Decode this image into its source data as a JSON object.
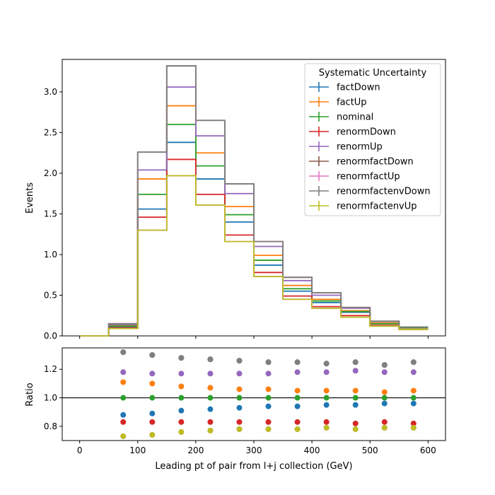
{
  "chart_data": {
    "type": "line",
    "main": {
      "xlabel": "",
      "ylabel": "Events",
      "xlim": [
        -30,
        630
      ],
      "ylim": [
        0,
        3.4
      ],
      "yticks": [
        0.0,
        0.5,
        1.0,
        1.5,
        2.0,
        2.5,
        3.0
      ],
      "ytick_labels": [
        "0.0",
        "0.5",
        "1.0",
        "1.5",
        "2.0",
        "2.5",
        "3.0"
      ],
      "bin_edges": [
        0,
        50,
        100,
        150,
        200,
        250,
        300,
        350,
        400,
        450,
        500,
        550,
        600
      ],
      "legend": {
        "title": "Systematic Uncertainty",
        "placement": "upper right"
      },
      "series": [
        {
          "name": "factDown",
          "color": "#1f77b4",
          "values": [
            0.0,
            0.11,
            1.56,
            2.38,
            1.93,
            1.4,
            0.87,
            0.55,
            0.41,
            0.29,
            0.15,
            0.1
          ]
        },
        {
          "name": "factUp",
          "color": "#ff7f0e",
          "values": [
            0.0,
            0.13,
            1.93,
            2.83,
            2.25,
            1.59,
            0.99,
            0.62,
            0.45,
            0.31,
            0.16,
            0.1
          ]
        },
        {
          "name": "nominal",
          "color": "#2ca02c",
          "values": [
            0.0,
            0.12,
            1.74,
            2.6,
            2.09,
            1.49,
            0.93,
            0.58,
            0.43,
            0.3,
            0.15,
            0.1
          ]
        },
        {
          "name": "renormDown",
          "color": "#d62728",
          "values": [
            0.0,
            0.1,
            1.46,
            2.17,
            1.74,
            1.24,
            0.78,
            0.49,
            0.36,
            0.25,
            0.13,
            0.08
          ]
        },
        {
          "name": "renormUp",
          "color": "#9467bd",
          "values": [
            0.0,
            0.14,
            2.04,
            3.06,
            2.46,
            1.75,
            1.1,
            0.68,
            0.5,
            0.34,
            0.18,
            0.11
          ]
        },
        {
          "name": "renormfactDown",
          "color": "#8c564b",
          "values": [
            0.0,
            0.15,
            2.26,
            3.32,
            2.65,
            1.87,
            1.16,
            0.72,
            0.53,
            0.35,
            0.18,
            0.11
          ]
        },
        {
          "name": "renormfactUp",
          "color": "#e377c2",
          "values": [
            0.0,
            0.09,
            1.3,
            1.97,
            1.61,
            1.16,
            0.73,
            0.45,
            0.34,
            0.23,
            0.12,
            0.08
          ]
        },
        {
          "name": "renormfactenvDown",
          "color": "#7f7f7f",
          "values": [
            0.0,
            0.15,
            2.26,
            3.32,
            2.65,
            1.87,
            1.16,
            0.72,
            0.53,
            0.35,
            0.18,
            0.11
          ]
        },
        {
          "name": "renormfactenvUp",
          "color": "#bcbd22",
          "values": [
            0.0,
            0.09,
            1.3,
            1.97,
            1.61,
            1.16,
            0.73,
            0.45,
            0.34,
            0.23,
            0.12,
            0.08
          ]
        }
      ]
    },
    "ratio": {
      "type": "scatter",
      "xlabel": "Leading pt of pair from l+j collection (GeV)",
      "ylabel": "Ratio",
      "xlim": [
        -30,
        630
      ],
      "ylim": [
        0.7,
        1.35
      ],
      "xticks": [
        0,
        100,
        200,
        300,
        400,
        500,
        600
      ],
      "xtick_labels": [
        "0",
        "100",
        "200",
        "300",
        "400",
        "500",
        "600"
      ],
      "yticks": [
        0.8,
        1.0,
        1.2
      ],
      "ytick_labels": [
        "0.8",
        "1.0",
        "1.2"
      ],
      "reference_line": 1.0,
      "x": [
        75,
        125,
        175,
        225,
        275,
        325,
        375,
        425,
        475,
        525,
        575
      ],
      "series": [
        {
          "name": "factDown",
          "color": "#1f77b4",
          "values": [
            0.88,
            0.89,
            0.91,
            0.92,
            0.93,
            0.94,
            0.94,
            0.95,
            0.95,
            0.96,
            0.96
          ]
        },
        {
          "name": "factUp",
          "color": "#ff7f0e",
          "values": [
            1.11,
            1.1,
            1.08,
            1.07,
            1.06,
            1.06,
            1.05,
            1.05,
            1.05,
            1.04,
            1.05
          ]
        },
        {
          "name": "nominal",
          "color": "#2ca02c",
          "values": [
            1.0,
            1.0,
            1.0,
            1.0,
            1.0,
            1.0,
            1.0,
            1.0,
            1.0,
            1.0,
            1.0
          ]
        },
        {
          "name": "renormDown",
          "color": "#d62728",
          "values": [
            0.83,
            0.83,
            0.83,
            0.83,
            0.83,
            0.83,
            0.83,
            0.83,
            0.82,
            0.83,
            0.82
          ]
        },
        {
          "name": "renormUp",
          "color": "#9467bd",
          "values": [
            1.18,
            1.17,
            1.17,
            1.17,
            1.17,
            1.17,
            1.18,
            1.18,
            1.19,
            1.18,
            1.18
          ]
        },
        {
          "name": "renormfactDown",
          "color": "#8c564b",
          "values": [
            1.32,
            1.3,
            1.28,
            1.27,
            1.26,
            1.25,
            1.25,
            1.24,
            1.25,
            1.23,
            1.25
          ]
        },
        {
          "name": "renormfactUp",
          "color": "#e377c2",
          "values": [
            0.73,
            0.74,
            0.76,
            0.77,
            0.78,
            0.78,
            0.78,
            0.79,
            0.78,
            0.79,
            0.79
          ]
        },
        {
          "name": "renormfactenvDown",
          "color": "#7f7f7f",
          "values": [
            1.32,
            1.3,
            1.28,
            1.27,
            1.26,
            1.25,
            1.25,
            1.24,
            1.25,
            1.23,
            1.25
          ]
        },
        {
          "name": "renormfactenvUp",
          "color": "#bcbd22",
          "values": [
            0.73,
            0.74,
            0.76,
            0.77,
            0.78,
            0.78,
            0.78,
            0.79,
            0.78,
            0.79,
            0.79
          ]
        }
      ]
    }
  }
}
